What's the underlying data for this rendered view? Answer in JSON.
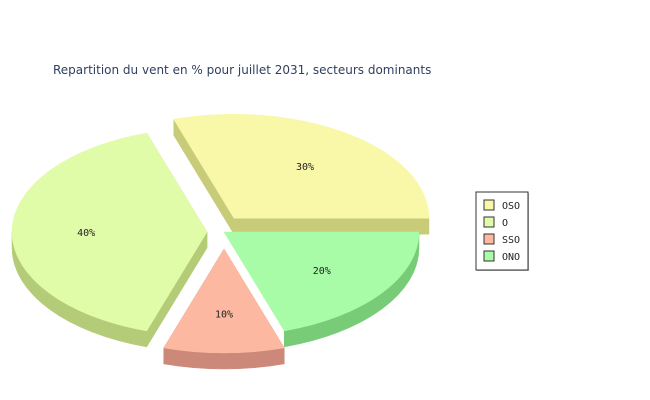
{
  "chart_data": {
    "type": "pie",
    "title": "Repartition du vent en % pour juillet 2031, secteurs dominants",
    "slices": [
      {
        "name": "OSO",
        "value": 30,
        "label": "30%",
        "color": "#f8f8a8",
        "side": "#c8cc78",
        "exploded": true
      },
      {
        "name": "O",
        "value": 40,
        "label": "40%",
        "color": "#e0fca8",
        "side": "#b4cc78",
        "exploded": true
      },
      {
        "name": "SSO",
        "value": 10,
        "label": "10%",
        "color": "#fcb8a0",
        "side": "#cc8878",
        "exploded": true
      },
      {
        "name": "ONO",
        "value": 20,
        "label": "20%",
        "color": "#a8fca8",
        "side": "#78cc78",
        "exploded": false
      }
    ],
    "legend_position": "right"
  }
}
